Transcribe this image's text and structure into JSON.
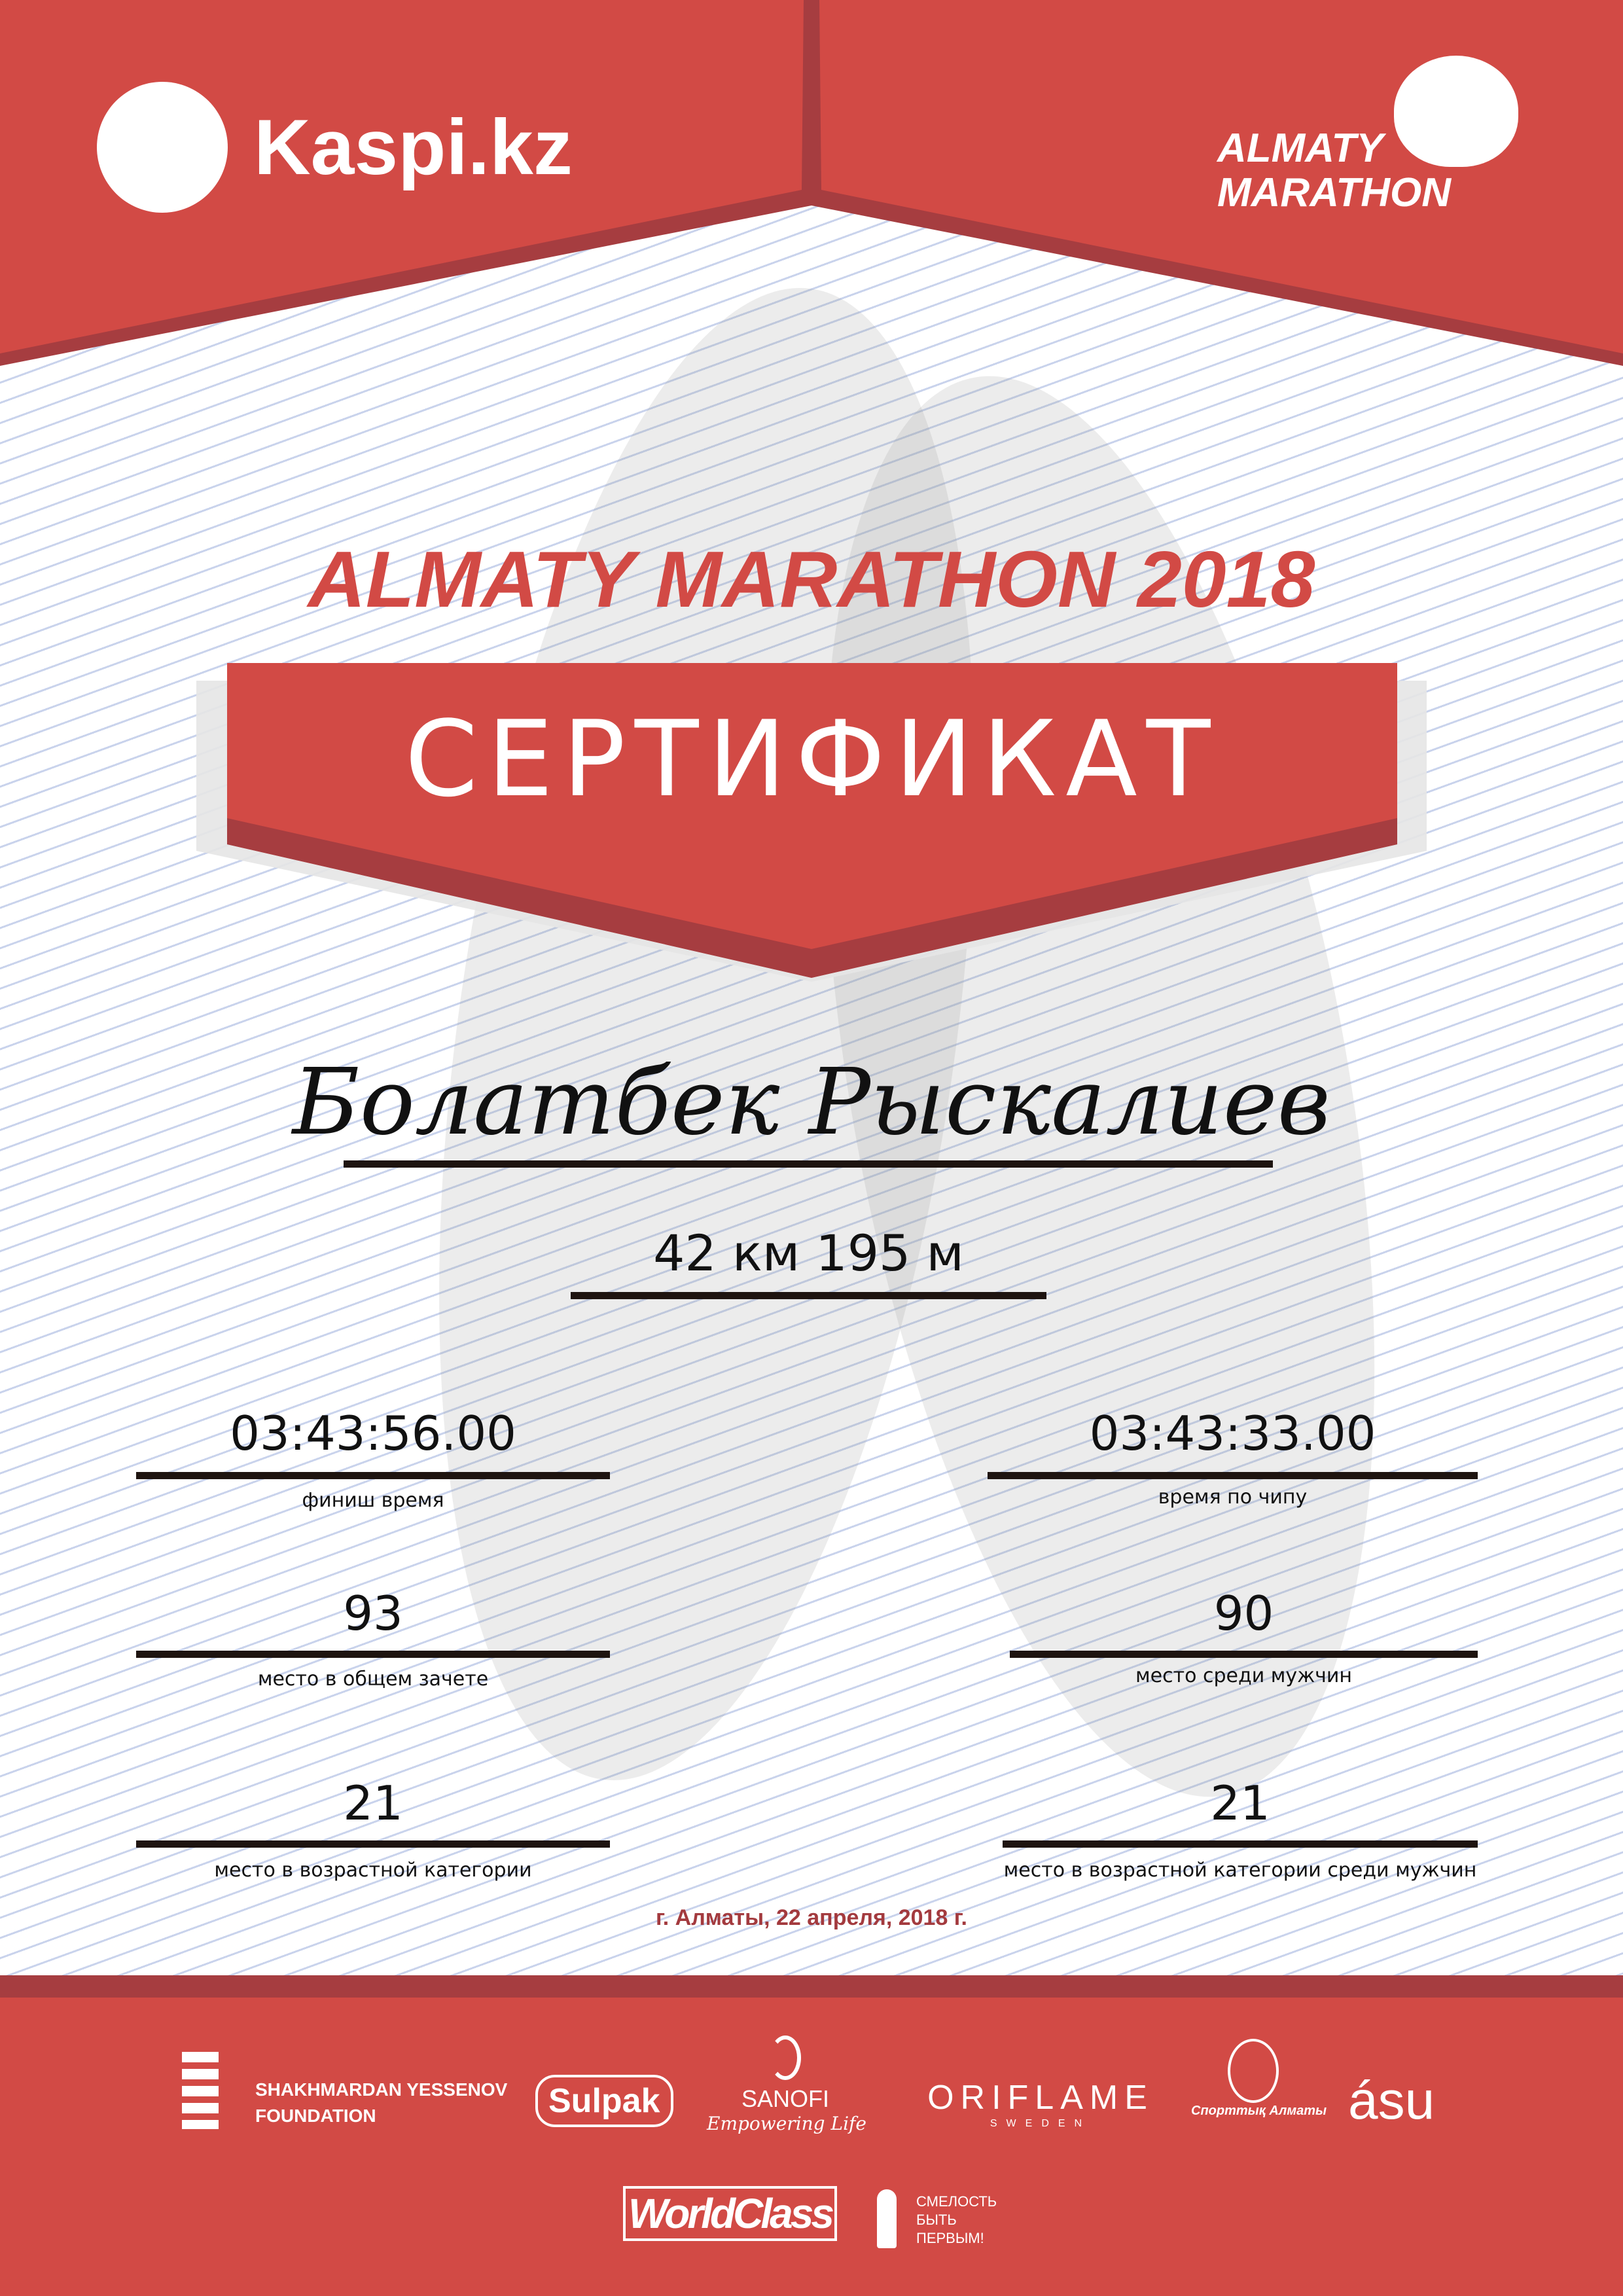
{
  "colors": {
    "brand_red": "#d24a45",
    "dark_red": "#a63d40",
    "date_red": "#a33a3e"
  },
  "header": {
    "left_logo": "Kaspi.kz",
    "right_logo_line1": "ALMATY",
    "right_logo_line2": "MARATHON"
  },
  "event_title": "ALMATY MARATHON 2018",
  "banner_title": "СЕРТИФИКАТ",
  "participant_name": "Болатбек Рыскалиев",
  "distance": "42 км 195 м",
  "results": {
    "finish_time": {
      "value": "03:43:56.00",
      "label": "финиш время"
    },
    "chip_time": {
      "value": "03:43:33.00",
      "label": "время по чипу"
    },
    "overall_place": {
      "value": "93",
      "label": "место в общем зачете"
    },
    "gender_place": {
      "value": "90",
      "label": "место среди мужчин"
    },
    "age_place": {
      "value": "21",
      "label": "место в возрастной категории"
    },
    "age_gender_place": {
      "value": "21",
      "label": "место в возрастной категории среди мужчин"
    }
  },
  "date_line": "г. Алматы, 22 апреля, 2018 г.",
  "sponsors": {
    "yessenov_line1": "SHAKHMARDAN YESSENOV",
    "yessenov_line2": "FOUNDATION",
    "sulpak": "Sulpak",
    "sanofi": "SANOFI",
    "sanofi_tagline": "Empowering Life",
    "oriflame": "ORIFLAME",
    "oriflame_sub": "SWEDEN",
    "sport_almaty": "Спорттық Алматы",
    "asu": "ásu",
    "worldclass": "WorldClass",
    "smelost_line1": "СМЕЛОСТЬ",
    "smelost_line2": "БЫТЬ",
    "smelost_line3": "ПЕРВЫМ!"
  }
}
